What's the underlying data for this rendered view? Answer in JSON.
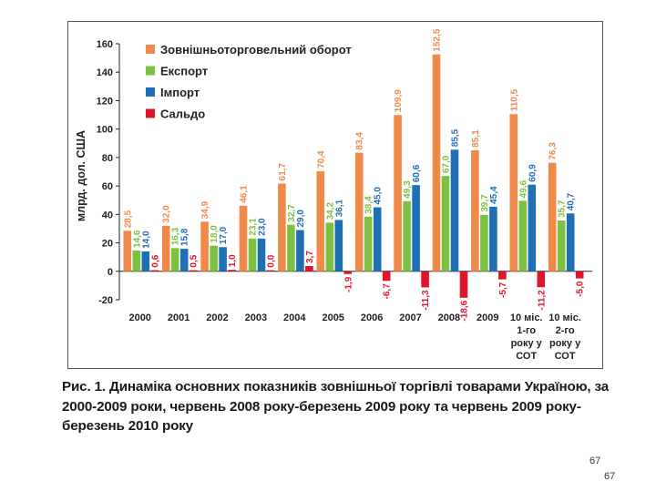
{
  "chart_data": {
    "type": "bar",
    "ylabel": "млрд. дол. США",
    "ylim": [
      -20,
      160
    ],
    "yticks": [
      -20,
      0,
      20,
      40,
      60,
      80,
      100,
      120,
      140,
      160
    ],
    "legend_position": "top-left",
    "categories": [
      "2000",
      "2001",
      "2002",
      "2003",
      "2004",
      "2005",
      "2006",
      "2007",
      "2008",
      "2009",
      "10 міс. 1-го року у СОТ",
      "10 міс. 2-го року у СОТ"
    ],
    "series": [
      {
        "name": "Зовнішньоторговельний оборот",
        "color": "#f08a4b",
        "values": [
          28.5,
          32.0,
          34.9,
          46.1,
          61.7,
          70.4,
          83.4,
          109.9,
          152.5,
          85.1,
          110.5,
          76.3
        ],
        "labels": [
          "28,5",
          "32,0",
          "34,9",
          "46,1",
          "61,7",
          "70,4",
          "83,4",
          "109,9",
          "152,5",
          "85,1",
          "110,5",
          "76,3"
        ]
      },
      {
        "name": "Експорт",
        "color": "#7cc142",
        "values": [
          14.6,
          16.3,
          18.0,
          23.1,
          32.7,
          34.2,
          38.4,
          49.3,
          67.0,
          39.7,
          49.6,
          35.7
        ],
        "labels": [
          "14,6",
          "16,3",
          "18,0",
          "23,1",
          "32,7",
          "34,2",
          "38,4",
          "49,3",
          "67,0",
          "39,7",
          "49,6",
          "35,7"
        ]
      },
      {
        "name": "Імпорт",
        "color": "#1f6fb5",
        "values": [
          14.0,
          15.8,
          17.0,
          23.0,
          29.0,
          36.1,
          45.0,
          60.6,
          85.5,
          45.4,
          60.9,
          40.7
        ],
        "labels": [
          "14,0",
          "15,8",
          "17,0",
          "23,0",
          "29,0",
          "36,1",
          "45,0",
          "60,6",
          "85,5",
          "45,4",
          "60,9",
          "40,7"
        ]
      },
      {
        "name": "Сальдо",
        "color": "#e0152a",
        "values": [
          0.6,
          0.5,
          1.0,
          0.0,
          3.7,
          -1.9,
          -6.7,
          -11.3,
          -18.6,
          -5.7,
          -11.2,
          -5.0
        ],
        "labels": [
          "0,6",
          "0,5",
          "1,0",
          "0,0",
          "3,7",
          "-1,9",
          "-6,7",
          "-11,3",
          "-18,6",
          "-5,7",
          "-11,2",
          "-5,0"
        ]
      }
    ]
  },
  "x_label_lines": [
    [
      "2000"
    ],
    [
      "2001"
    ],
    [
      "2002"
    ],
    [
      "2003"
    ],
    [
      "2004"
    ],
    [
      "2005"
    ],
    [
      "2006"
    ],
    [
      "2007"
    ],
    [
      "2008"
    ],
    [
      "2009"
    ],
    [
      "10 міс.",
      "1-го",
      "року у",
      "СОТ"
    ],
    [
      "10 міс.",
      "2-го",
      "року у",
      "СОТ"
    ]
  ],
  "caption": "Рис. 1. Динаміка основних показників зовнішньої торгівлі товарами Україною, за 2000-2009 роки, червень 2008 року-березень 2009 року та червень 2009 року-березень 2010 року",
  "page_numbers": [
    "67",
    "67"
  ]
}
